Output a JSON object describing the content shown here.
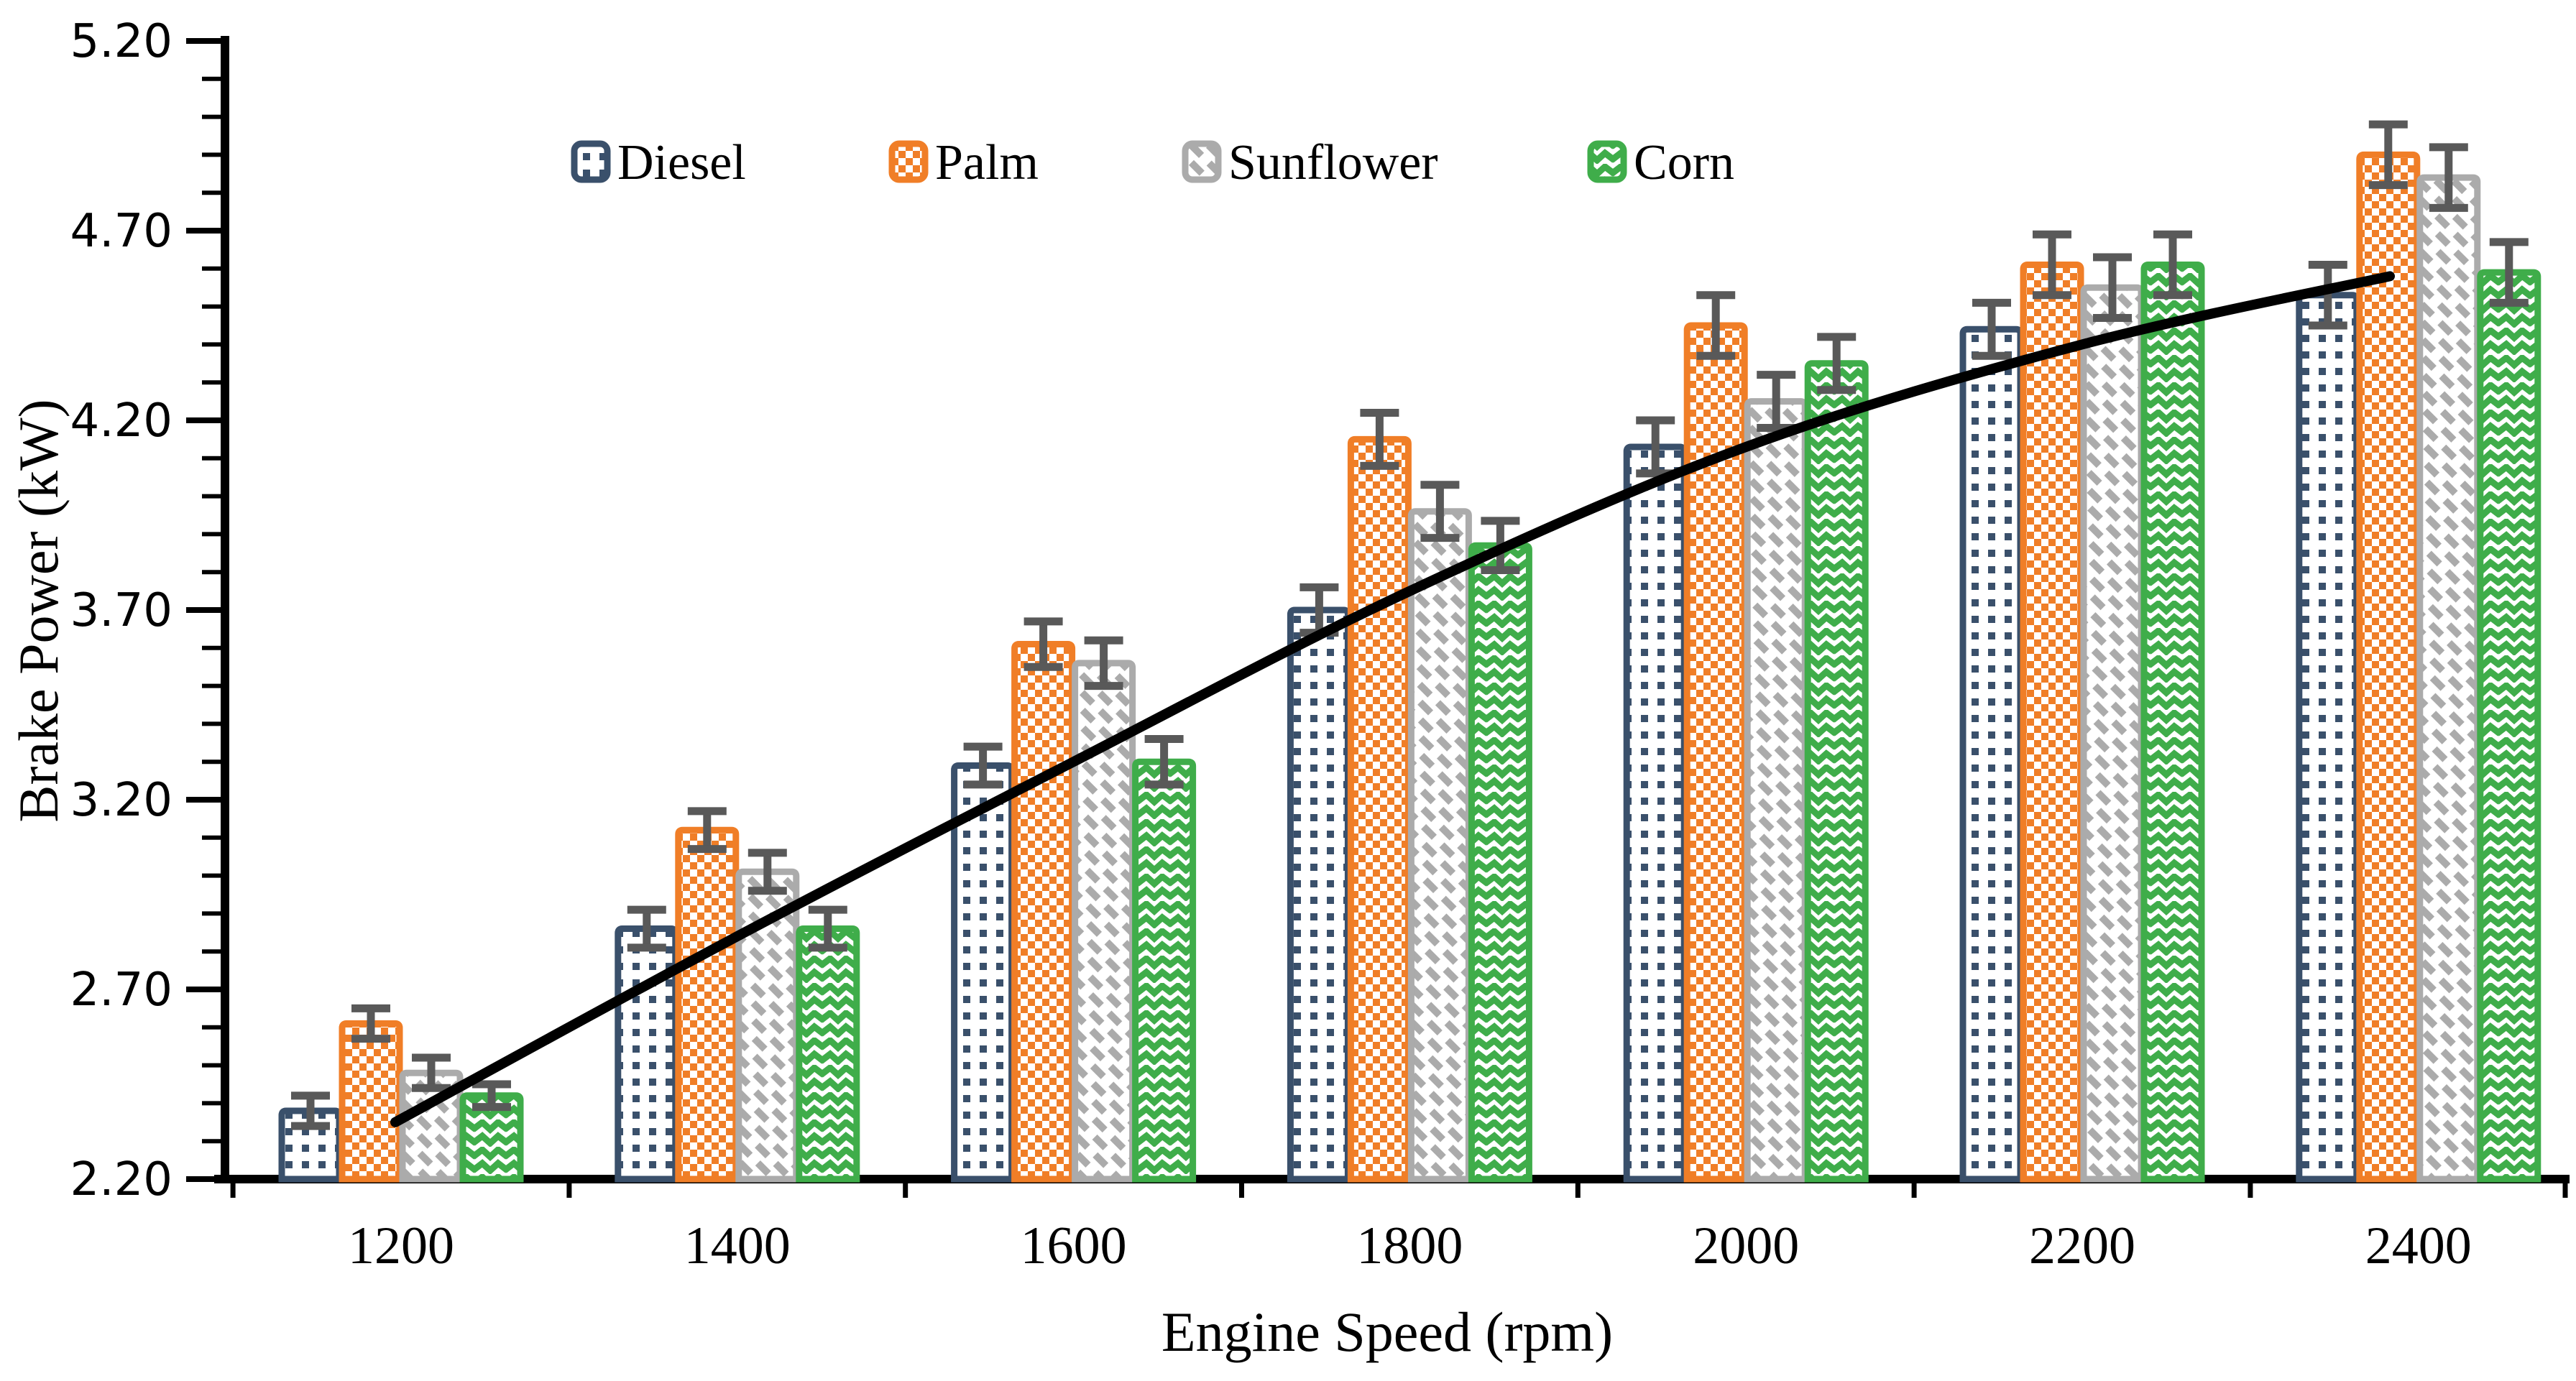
{
  "chart_data": {
    "type": "bar",
    "title": "",
    "xlabel": "Engine Speed (rpm)",
    "ylabel": "Brake Power (kW)",
    "categories": [
      "1200",
      "1400",
      "1600",
      "1800",
      "2000",
      "2200",
      "2400"
    ],
    "ylim": [
      2.2,
      5.2
    ],
    "y_major_step": 0.5,
    "y_minor_step": 0.1,
    "y_tick_labels": [
      "2.20",
      "2.70",
      "3.20",
      "3.70",
      "4.20",
      "4.70",
      "5.20"
    ],
    "grid": false,
    "legend_position": "top-inside",
    "series": [
      {
        "name": "Diesel",
        "color": "#3A506B",
        "pattern": "dots",
        "values": [
          2.38,
          2.86,
          3.29,
          3.7,
          4.13,
          4.44,
          4.53
        ],
        "errors": [
          0.04,
          0.05,
          0.05,
          0.06,
          0.07,
          0.07,
          0.08
        ]
      },
      {
        "name": "Palm",
        "color": "#F07E27",
        "pattern": "checker",
        "values": [
          2.61,
          3.12,
          3.61,
          4.15,
          4.45,
          4.61,
          4.9
        ],
        "errors": [
          0.04,
          0.05,
          0.06,
          0.07,
          0.08,
          0.08,
          0.08
        ]
      },
      {
        "name": "Sunflower",
        "color": "#ABABAB",
        "pattern": "diagonal",
        "values": [
          2.48,
          3.01,
          3.56,
          3.96,
          4.25,
          4.55,
          4.84
        ],
        "errors": [
          0.04,
          0.05,
          0.06,
          0.07,
          0.07,
          0.08,
          0.08
        ]
      },
      {
        "name": "Corn",
        "color": "#3FAD4A",
        "pattern": "zigzag",
        "values": [
          2.42,
          2.86,
          3.3,
          3.87,
          4.35,
          4.61,
          4.59
        ],
        "errors": [
          0.03,
          0.05,
          0.06,
          0.065,
          0.07,
          0.08,
          0.08
        ]
      }
    ],
    "error_bar_color": "#595959",
    "axis_color": "#000000",
    "trendline": {
      "color": "#000000",
      "values": [
        2.35,
        2.84,
        3.3,
        3.75,
        4.13,
        4.4,
        4.58
      ]
    }
  }
}
